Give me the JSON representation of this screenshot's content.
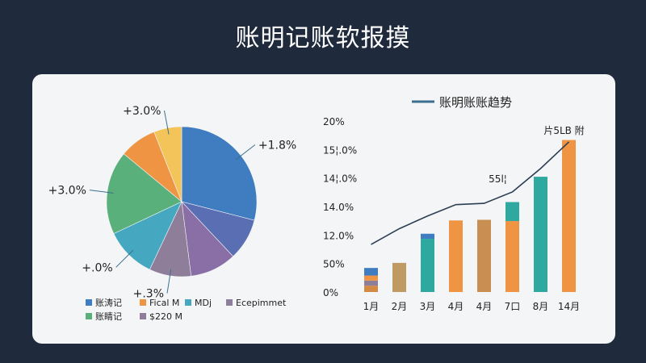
{
  "page": {
    "title": "账明记账软报摸"
  },
  "chart_data": [
    {
      "type": "pie",
      "slices": [
        {
          "label": "+1.8%",
          "value": 29,
          "color": "#3f7cc0"
        },
        {
          "label": "",
          "value": 9,
          "color": "#5a6fb3"
        },
        {
          "label": "",
          "value": 10,
          "color": "#8a6ea6"
        },
        {
          "label": "+.3%",
          "value": 9,
          "color": "#8e7e9a"
        },
        {
          "label": "+.0%",
          "value": 11,
          "color": "#45a8c0"
        },
        {
          "label": "+3.0%",
          "value": 18,
          "color": "#5ab07a"
        },
        {
          "label": "",
          "value": 8,
          "color": "#ef9442"
        },
        {
          "label": "+3.0%",
          "value": 6,
          "color": "#f2c45a"
        }
      ],
      "legend": [
        {
          "label": "账涛记",
          "color": "#3f7cc0"
        },
        {
          "label": "Fical M",
          "color": "#ef9442"
        },
        {
          "label": "MDj",
          "color": "#45a8c0"
        },
        {
          "label": "Ecepimmet",
          "color": "#8e7e9a"
        },
        {
          "label": "账睛记",
          "color": "#5ab07a"
        },
        {
          "label": "$220 M",
          "color": "#8e7e9a"
        }
      ]
    },
    {
      "type": "bar",
      "title": "账明账账趋势",
      "categories": [
        "1月",
        "2月",
        "3月",
        "4月",
        "4月",
        "7口",
        "8月",
        "14月"
      ],
      "y_ticks": [
        "20%",
        "15¦.0%",
        "14¦.0%",
        "14.0%",
        "12.0%",
        "50%",
        "0%"
      ],
      "series": [
        {
          "values": [
            {
              "color": "#d48a42",
              "segments": [
                {
                  "v": 0.1,
                  "c": "#d48a42"
                },
                {
                  "v": 0.08,
                  "c": "#8e7e9a"
                },
                {
                  "v": 0.08,
                  "c": "#ef9442"
                },
                {
                  "v": 0.12,
                  "c": "#3f7cc0"
                }
              ]
            },
            {
              "color": "#c09a63",
              "segments": [
                {
                  "v": 0.46,
                  "c": "#c09a63"
                }
              ]
            },
            {
              "color": "#2fa8a0",
              "segments": [
                {
                  "v": 0.84,
                  "c": "#2fa8a0"
                },
                {
                  "v": 0.08,
                  "c": "#3f7cc0"
                }
              ]
            },
            {
              "color": "#ef9442",
              "segments": [
                {
                  "v": 1.13,
                  "c": "#ef9442"
                }
              ]
            },
            {
              "color": "#c98f52",
              "segments": [
                {
                  "v": 1.14,
                  "c": "#c98f52"
                }
              ]
            },
            {
              "color": "#ef9442",
              "segments": [
                {
                  "v": 1.12,
                  "c": "#ef9442"
                },
                {
                  "v": 0.3,
                  "c": "#2fa8a0"
                }
              ]
            },
            {
              "color": "#2fa8a0",
              "segments": [
                {
                  "v": 1.82,
                  "c": "#2fa8a0"
                }
              ]
            },
            {
              "color": "#ef9442",
              "segments": [
                {
                  "v": 2.4,
                  "c": "#ef9442"
                }
              ]
            }
          ]
        }
      ],
      "trend_line": [
        0.75,
        1.0,
        1.2,
        1.38,
        1.4,
        1.58,
        1.95,
        2.37
      ],
      "annotations": [
        {
          "text": "55l¦",
          "at_index": 5
        },
        {
          "text": "片5LB 附",
          "at_index": 7
        }
      ],
      "legend": [
        {
          "label": "账明账账趋势",
          "color": "#3b6f8f"
        }
      ]
    }
  ]
}
